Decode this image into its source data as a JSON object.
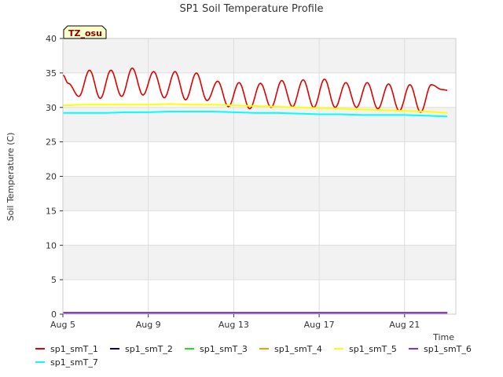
{
  "chart_data": {
    "type": "line",
    "title": "SP1 Soil Temperature Profile",
    "xlabel": "Time",
    "ylabel": "Soil Temperature (C)",
    "badge": "TZ_osu",
    "ylim": [
      0,
      40
    ],
    "xlim_days": [
      5,
      23.4
    ],
    "x_unit": "day of August",
    "yticks": [
      0,
      5,
      10,
      15,
      20,
      25,
      30,
      35,
      40
    ],
    "xticks": [
      {
        "day": 5,
        "label": "Aug 5"
      },
      {
        "day": 9,
        "label": "Aug 9"
      },
      {
        "day": 13,
        "label": "Aug 13"
      },
      {
        "day": 17,
        "label": "Aug 17"
      },
      {
        "day": 21,
        "label": "Aug 21"
      }
    ],
    "grid": true,
    "legend_position": "bottom",
    "series": [
      {
        "name": "sp1_smT_1",
        "color": "#e00000",
        "diurnal": true,
        "x": [
          5.0,
          5.25,
          5.75,
          6.25,
          6.75,
          7.25,
          7.75,
          8.25,
          8.75,
          9.25,
          9.75,
          10.25,
          10.75,
          11.25,
          11.75,
          12.25,
          12.75,
          13.25,
          13.75,
          14.25,
          14.75,
          15.25,
          15.75,
          16.25,
          16.75,
          17.25,
          17.75,
          18.25,
          18.75,
          19.25,
          19.75,
          20.25,
          20.75,
          21.25,
          21.75,
          22.25,
          22.75,
          23.0
        ],
        "y": [
          34.7,
          33.5,
          31.6,
          35.4,
          31.3,
          35.4,
          31.6,
          35.7,
          31.8,
          35.2,
          31.4,
          35.2,
          31.1,
          35.0,
          31.0,
          33.8,
          30.1,
          33.6,
          29.8,
          33.5,
          30.0,
          33.9,
          30.1,
          34.0,
          30.0,
          34.1,
          30.0,
          33.6,
          30.0,
          33.6,
          29.8,
          33.4,
          29.5,
          33.3,
          29.3,
          33.3,
          32.6,
          32.5
        ]
      },
      {
        "name": "sp1_smT_2",
        "color": "#00008b",
        "x": [
          5,
          23
        ],
        "y": [
          0.2,
          0.2
        ]
      },
      {
        "name": "sp1_smT_3",
        "color": "#22dd22",
        "x": [
          5,
          23
        ],
        "y": [
          0.2,
          0.2
        ]
      },
      {
        "name": "sp1_smT_4",
        "color": "#ff9900",
        "x": [
          5,
          23
        ],
        "y": [
          0.2,
          0.2
        ]
      },
      {
        "name": "sp1_smT_5",
        "color": "#ffff00",
        "x": [
          5,
          6,
          7,
          8,
          9,
          10,
          11,
          12,
          13,
          14,
          15,
          16,
          17,
          18,
          19,
          20,
          21,
          22,
          23
        ],
        "y": [
          30.3,
          30.4,
          30.4,
          30.4,
          30.4,
          30.5,
          30.4,
          30.4,
          30.3,
          30.2,
          30.1,
          30.0,
          29.9,
          29.8,
          29.7,
          29.6,
          29.5,
          29.4,
          29.2
        ]
      },
      {
        "name": "sp1_smT_6",
        "color": "#8a2be2",
        "x": [
          5,
          23
        ],
        "y": [
          0.2,
          0.2
        ]
      },
      {
        "name": "sp1_smT_7",
        "color": "#00ffff",
        "x": [
          5,
          6,
          7,
          8,
          9,
          10,
          11,
          12,
          13,
          14,
          15,
          16,
          17,
          18,
          19,
          20,
          21,
          22,
          23
        ],
        "y": [
          29.2,
          29.2,
          29.2,
          29.3,
          29.3,
          29.4,
          29.4,
          29.4,
          29.3,
          29.2,
          29.2,
          29.1,
          29.0,
          29.0,
          28.9,
          28.9,
          28.9,
          28.8,
          28.7
        ]
      }
    ]
  }
}
